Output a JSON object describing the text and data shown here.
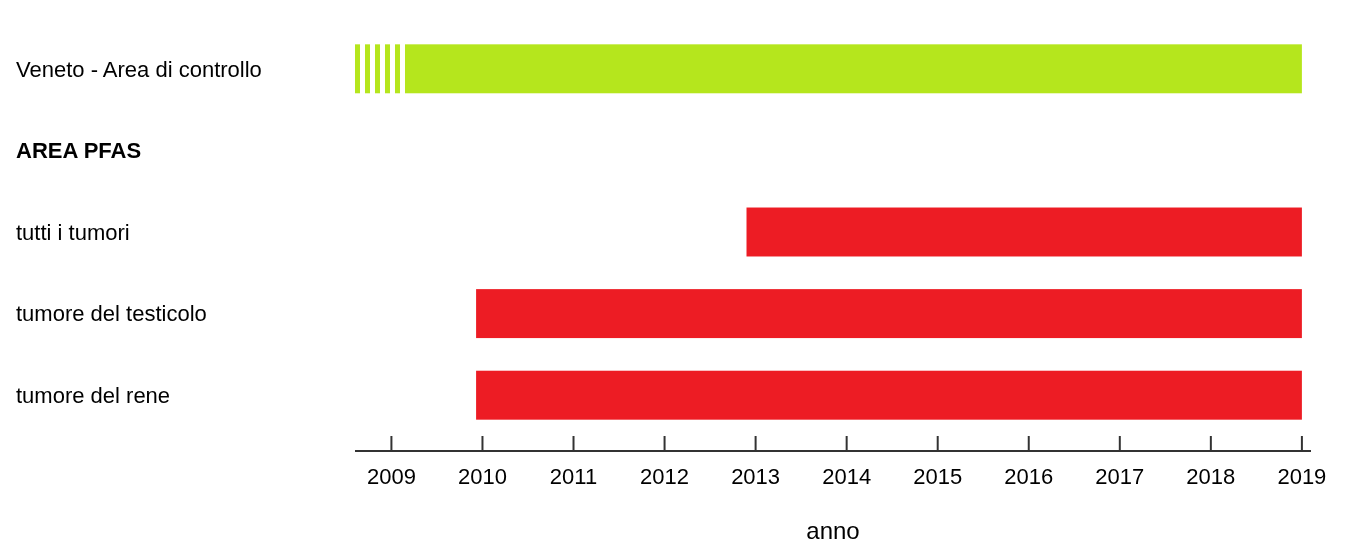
{
  "chart_data": {
    "type": "bar",
    "orientation": "horizontal",
    "xlabel": "anno",
    "categories": [
      "Veneto - Area di controllo",
      "AREA PFAS",
      "tutti i tumori",
      "tumore del testicolo",
      "tumore del rene"
    ],
    "base": [
      2008.6,
      null,
      2012.9,
      2009.93,
      2009.93
    ],
    "values": [
      10.4,
      null,
      6.1,
      9.07,
      9.07
    ],
    "colors": [
      "#b5e61d",
      null,
      "#ed1c24",
      "#ed1c24",
      "#ed1c24"
    ],
    "xlim": [
      2008.6,
      2019.1
    ],
    "xticks": [
      2009,
      2010,
      2011,
      2012,
      2013,
      2014,
      2015,
      2016,
      2017,
      2018,
      2019
    ],
    "grid": false
  }
}
